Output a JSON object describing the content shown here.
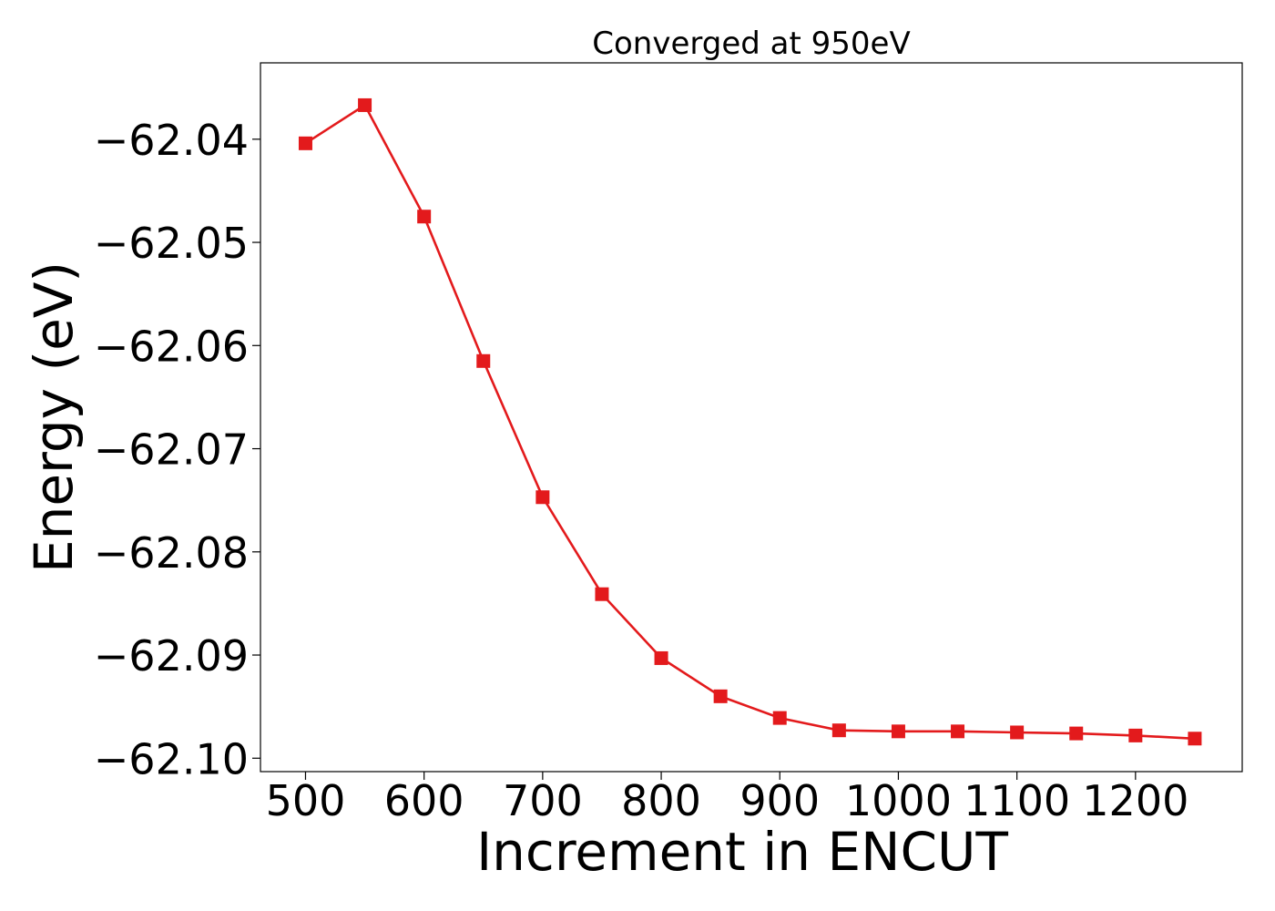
{
  "chart_data": {
    "type": "line",
    "title": "Converged at 950eV",
    "xlabel": "Increment in ENCUT",
    "ylabel": "Energy (eV)",
    "xlim": [
      462,
      1290
    ],
    "ylim": [
      -62.1013,
      -62.0326
    ],
    "x_ticks": [
      500,
      600,
      700,
      800,
      900,
      1000,
      1100,
      1200
    ],
    "x_tick_labels": [
      "500",
      "600",
      "700",
      "800",
      "900",
      "1000",
      "1100",
      "1200"
    ],
    "y_ticks": [
      -62.04,
      -62.05,
      -62.06,
      -62.07,
      -62.08,
      -62.09,
      -62.1
    ],
    "y_tick_labels": [
      "−62.04",
      "−62.05",
      "−62.06",
      "−62.07",
      "−62.08",
      "−62.09",
      "−62.10"
    ],
    "grid": false,
    "series": [
      {
        "color": "#e31a1c",
        "marker": "square",
        "x": [
          500,
          550,
          600,
          650,
          700,
          750,
          800,
          850,
          900,
          950,
          1000,
          1050,
          1100,
          1150,
          1200,
          1250
        ],
        "y": [
          -62.0404,
          -62.0367,
          -62.0475,
          -62.0615,
          -62.0747,
          -62.0841,
          -62.0903,
          -62.094,
          -62.0961,
          -62.0973,
          -62.0974,
          -62.0974,
          -62.0975,
          -62.0976,
          -62.0978,
          -62.0981
        ]
      }
    ]
  }
}
